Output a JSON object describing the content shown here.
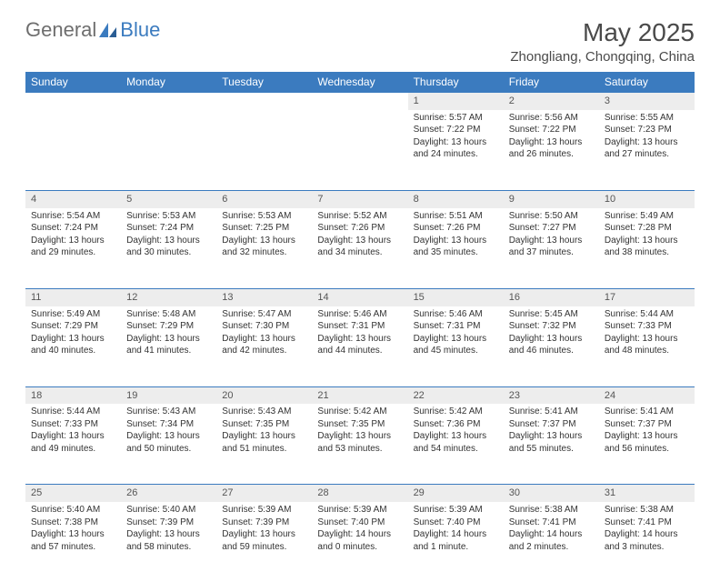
{
  "logo": {
    "part1": "General",
    "part2": "Blue"
  },
  "title": "May 2025",
  "location": "Zhongliang, Chongqing, China",
  "colors": {
    "header_bg": "#3b7bbf",
    "header_text": "#ffffff",
    "daynum_bg": "#ededed",
    "border": "#3b7bbf",
    "text": "#333333",
    "logo_gray": "#6e6e6e",
    "logo_blue": "#3b7bbf"
  },
  "day_headers": [
    "Sunday",
    "Monday",
    "Tuesday",
    "Wednesday",
    "Thursday",
    "Friday",
    "Saturday"
  ],
  "weeks": [
    [
      null,
      null,
      null,
      null,
      {
        "n": "1",
        "sr": "5:57 AM",
        "ss": "7:22 PM",
        "dl": "13 hours and 24 minutes."
      },
      {
        "n": "2",
        "sr": "5:56 AM",
        "ss": "7:22 PM",
        "dl": "13 hours and 26 minutes."
      },
      {
        "n": "3",
        "sr": "5:55 AM",
        "ss": "7:23 PM",
        "dl": "13 hours and 27 minutes."
      }
    ],
    [
      {
        "n": "4",
        "sr": "5:54 AM",
        "ss": "7:24 PM",
        "dl": "13 hours and 29 minutes."
      },
      {
        "n": "5",
        "sr": "5:53 AM",
        "ss": "7:24 PM",
        "dl": "13 hours and 30 minutes."
      },
      {
        "n": "6",
        "sr": "5:53 AM",
        "ss": "7:25 PM",
        "dl": "13 hours and 32 minutes."
      },
      {
        "n": "7",
        "sr": "5:52 AM",
        "ss": "7:26 PM",
        "dl": "13 hours and 34 minutes."
      },
      {
        "n": "8",
        "sr": "5:51 AM",
        "ss": "7:26 PM",
        "dl": "13 hours and 35 minutes."
      },
      {
        "n": "9",
        "sr": "5:50 AM",
        "ss": "7:27 PM",
        "dl": "13 hours and 37 minutes."
      },
      {
        "n": "10",
        "sr": "5:49 AM",
        "ss": "7:28 PM",
        "dl": "13 hours and 38 minutes."
      }
    ],
    [
      {
        "n": "11",
        "sr": "5:49 AM",
        "ss": "7:29 PM",
        "dl": "13 hours and 40 minutes."
      },
      {
        "n": "12",
        "sr": "5:48 AM",
        "ss": "7:29 PM",
        "dl": "13 hours and 41 minutes."
      },
      {
        "n": "13",
        "sr": "5:47 AM",
        "ss": "7:30 PM",
        "dl": "13 hours and 42 minutes."
      },
      {
        "n": "14",
        "sr": "5:46 AM",
        "ss": "7:31 PM",
        "dl": "13 hours and 44 minutes."
      },
      {
        "n": "15",
        "sr": "5:46 AM",
        "ss": "7:31 PM",
        "dl": "13 hours and 45 minutes."
      },
      {
        "n": "16",
        "sr": "5:45 AM",
        "ss": "7:32 PM",
        "dl": "13 hours and 46 minutes."
      },
      {
        "n": "17",
        "sr": "5:44 AM",
        "ss": "7:33 PM",
        "dl": "13 hours and 48 minutes."
      }
    ],
    [
      {
        "n": "18",
        "sr": "5:44 AM",
        "ss": "7:33 PM",
        "dl": "13 hours and 49 minutes."
      },
      {
        "n": "19",
        "sr": "5:43 AM",
        "ss": "7:34 PM",
        "dl": "13 hours and 50 minutes."
      },
      {
        "n": "20",
        "sr": "5:43 AM",
        "ss": "7:35 PM",
        "dl": "13 hours and 51 minutes."
      },
      {
        "n": "21",
        "sr": "5:42 AM",
        "ss": "7:35 PM",
        "dl": "13 hours and 53 minutes."
      },
      {
        "n": "22",
        "sr": "5:42 AM",
        "ss": "7:36 PM",
        "dl": "13 hours and 54 minutes."
      },
      {
        "n": "23",
        "sr": "5:41 AM",
        "ss": "7:37 PM",
        "dl": "13 hours and 55 minutes."
      },
      {
        "n": "24",
        "sr": "5:41 AM",
        "ss": "7:37 PM",
        "dl": "13 hours and 56 minutes."
      }
    ],
    [
      {
        "n": "25",
        "sr": "5:40 AM",
        "ss": "7:38 PM",
        "dl": "13 hours and 57 minutes."
      },
      {
        "n": "26",
        "sr": "5:40 AM",
        "ss": "7:39 PM",
        "dl": "13 hours and 58 minutes."
      },
      {
        "n": "27",
        "sr": "5:39 AM",
        "ss": "7:39 PM",
        "dl": "13 hours and 59 minutes."
      },
      {
        "n": "28",
        "sr": "5:39 AM",
        "ss": "7:40 PM",
        "dl": "14 hours and 0 minutes."
      },
      {
        "n": "29",
        "sr": "5:39 AM",
        "ss": "7:40 PM",
        "dl": "14 hours and 1 minute."
      },
      {
        "n": "30",
        "sr": "5:38 AM",
        "ss": "7:41 PM",
        "dl": "14 hours and 2 minutes."
      },
      {
        "n": "31",
        "sr": "5:38 AM",
        "ss": "7:41 PM",
        "dl": "14 hours and 3 minutes."
      }
    ]
  ],
  "labels": {
    "sunrise": "Sunrise:",
    "sunset": "Sunset:",
    "daylight": "Daylight:"
  }
}
